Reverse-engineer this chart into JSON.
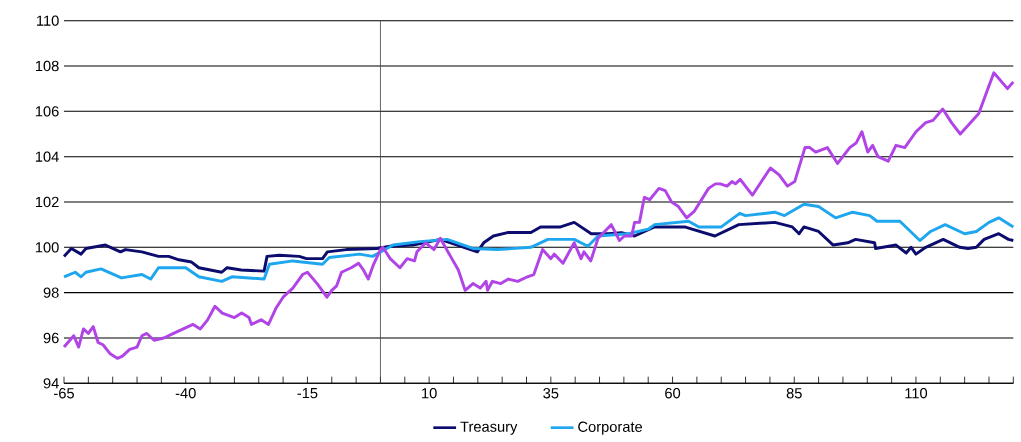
{
  "chart_data": {
    "type": "line",
    "xlim": [
      -65,
      130
    ],
    "ylim": [
      94,
      110
    ],
    "xticks": [
      -65,
      {
        "value": -60,
        "label": null
      },
      {
        "value": -55,
        "label": null
      },
      {
        "value": -50,
        "label": null
      },
      {
        "value": -45,
        "label": null
      },
      -40,
      {
        "value": -35,
        "label": null
      },
      {
        "value": -30,
        "label": null
      },
      {
        "value": -25,
        "label": null
      },
      {
        "value": -20,
        "label": null
      },
      -15,
      {
        "value": -10,
        "label": null
      },
      {
        "value": -5,
        "label": null
      },
      {
        "value": 0,
        "label": null
      },
      {
        "value": 5,
        "label": null
      },
      10,
      {
        "value": 15,
        "label": null
      },
      {
        "value": 20,
        "label": null
      },
      {
        "value": 25,
        "label": null
      },
      {
        "value": 30,
        "label": null
      },
      35,
      {
        "value": 40,
        "label": null
      },
      {
        "value": 45,
        "label": null
      },
      {
        "value": 50,
        "label": null
      },
      {
        "value": 55,
        "label": null
      },
      60,
      {
        "value": 65,
        "label": null
      },
      {
        "value": 70,
        "label": null
      },
      {
        "value": 75,
        "label": null
      },
      {
        "value": 80,
        "label": null
      },
      85,
      {
        "value": 90,
        "label": null
      },
      {
        "value": 95,
        "label": null
      },
      {
        "value": 100,
        "label": null
      },
      {
        "value": 105,
        "label": null
      },
      110,
      {
        "value": 115,
        "label": null
      },
      {
        "value": 120,
        "label": null
      },
      {
        "value": 125,
        "label": null
      },
      {
        "value": 130,
        "label": null
      }
    ],
    "yticks": [
      94,
      96,
      98,
      100,
      102,
      104,
      106,
      108,
      110
    ],
    "grid": "y",
    "legend": "bottom",
    "marker": "none",
    "line_style": "solid",
    "ref_lines": [
      {
        "axis": "x",
        "value": 0,
        "color": "#404040"
      }
    ],
    "series": [
      {
        "name": "Treasury",
        "color": "#0c0c6e",
        "x": [
          -65,
          -63.5,
          -61.5,
          -60.5,
          -56.5,
          -53.4,
          -52.4,
          -49,
          -45.6,
          -43.5,
          -41.4,
          -38.8,
          -37.3,
          -32.6,
          -31.5,
          -28.6,
          -23.9,
          -23.3,
          -20.8,
          -16.7,
          -15.2,
          -11.9,
          -10.9,
          -7,
          -0.7,
          2,
          6.7,
          12.3,
          16.4,
          19.9,
          21.2,
          23.2,
          26.1,
          30.9,
          32.9,
          37,
          39.8,
          43.3,
          46.8,
          49.5,
          52.2,
          56.3,
          62.5,
          64,
          68.7,
          73.6,
          81,
          84.6,
          86,
          87,
          90,
          93,
          96,
          97.6,
          101.5,
          101.7,
          105.9,
          108,
          109,
          110,
          112,
          115.6,
          119,
          120.7,
          122.4,
          124,
          127,
          129,
          130
        ],
        "values": [
          99.6,
          99.95,
          99.7,
          99.95,
          100.1,
          99.8,
          99.9,
          99.8,
          99.6,
          99.6,
          99.45,
          99.35,
          99.1,
          98.9,
          99.1,
          99,
          98.95,
          99.6,
          99.65,
          99.6,
          99.5,
          99.5,
          99.8,
          99.9,
          99.95,
          100.05,
          100.1,
          100.35,
          100.05,
          99.8,
          100.2,
          100.5,
          100.65,
          100.65,
          100.9,
          100.9,
          101.1,
          100.6,
          100.6,
          100.65,
          100.5,
          100.9,
          100.9,
          100.8,
          100.5,
          101,
          101.1,
          100.9,
          100.6,
          100.9,
          100.7,
          100.1,
          100.2,
          100.35,
          100.2,
          99.95,
          100.1,
          99.75,
          100,
          99.7,
          100,
          100.35,
          100,
          99.95,
          100,
          100.35,
          100.6,
          100.35,
          100.3
        ]
      },
      {
        "name": "Corporate",
        "color": "#1ea6ee",
        "x": [
          -65,
          -62.7,
          -61.5,
          -60.5,
          -57.4,
          -53.2,
          -49,
          -47.2,
          -45.6,
          -40,
          -37.3,
          -32.6,
          -30.5,
          -23.9,
          -22.8,
          -18,
          -11.9,
          -10.5,
          -4.3,
          -1.6,
          2.6,
          8.1,
          13.7,
          19,
          24,
          30.9,
          34.4,
          39.8,
          42.6,
          44.7,
          50.9,
          55,
          56.3,
          63.3,
          65.4,
          70,
          73.8,
          75,
          81,
          83,
          87,
          90,
          93.5,
          97,
          100.5,
          102,
          106.7,
          110.8,
          113,
          116,
          120,
          122.4,
          125,
          127,
          130
        ],
        "values": [
          98.7,
          98.9,
          98.7,
          98.9,
          99.05,
          98.65,
          98.8,
          98.6,
          99.1,
          99.1,
          98.7,
          98.5,
          98.7,
          98.6,
          99.25,
          99.4,
          99.25,
          99.55,
          99.7,
          99.6,
          100.1,
          100.25,
          100.35,
          99.95,
          99.9,
          100,
          100.35,
          100.35,
          100.05,
          100.5,
          100.6,
          100.8,
          101,
          101.15,
          100.9,
          100.9,
          101.5,
          101.4,
          101.55,
          101.4,
          101.9,
          101.8,
          101.3,
          101.55,
          101.4,
          101.15,
          101.15,
          100.3,
          100.7,
          101,
          100.6,
          100.7,
          101.1,
          101.3,
          100.9
        ]
      },
      {
        "color": "#b044e6",
        "x": [
          -65,
          -63,
          -62,
          -61,
          -60,
          -59,
          -58,
          -57,
          -55.5,
          -54,
          -53,
          -51.5,
          -50,
          -49,
          -48,
          -46.5,
          -44.5,
          -42.5,
          -40.5,
          -38.5,
          -37,
          -35.5,
          -34,
          -32.5,
          -30,
          -28.5,
          -27,
          -26.5,
          -24.5,
          -23,
          -21.5,
          -20,
          -18,
          -17,
          -16,
          -15,
          -13,
          -12,
          -11,
          -10,
          -9,
          -8,
          -6,
          -4.5,
          -3.5,
          -2.5,
          -1.5,
          0,
          0.5,
          2,
          4,
          5.5,
          7,
          7.5,
          9.3,
          11,
          12.3,
          14.4,
          16,
          17.4,
          19,
          20.5,
          21.7,
          22,
          23,
          24.7,
          26.3,
          28.2,
          30.2,
          31.5,
          33.3,
          35,
          35.7,
          37.5,
          39.8,
          41.2,
          41.8,
          43.2,
          44.7,
          47.4,
          49.1,
          50.1,
          51.6,
          52.2,
          53.2,
          54.2,
          55.3,
          57.2,
          58.5,
          59.8,
          61.2,
          62.9,
          64.5,
          67.4,
          68.8,
          69.8,
          71.2,
          72.2,
          72.9,
          73.9,
          76.4,
          80.1,
          81.9,
          83.6,
          85.1,
          87.2,
          88.2,
          89.4,
          91.8,
          93.9,
          96.4,
          97.7,
          98.9,
          100.1,
          101.1,
          102.2,
          104.3,
          105.9,
          107.7,
          110,
          112,
          113.5,
          115.5,
          117.3,
          119.1,
          121.2,
          122.9,
          124.6,
          126,
          128.8,
          130
        ],
        "values": [
          95.6,
          96.1,
          95.6,
          96.4,
          96.2,
          96.5,
          95.8,
          95.7,
          95.3,
          95.1,
          95.2,
          95.5,
          95.6,
          96.1,
          96.2,
          95.9,
          96,
          96.2,
          96.4,
          96.6,
          96.4,
          96.8,
          97.4,
          97.1,
          96.9,
          97.1,
          96.9,
          96.6,
          96.8,
          96.6,
          97.3,
          97.8,
          98.2,
          98.5,
          98.8,
          98.9,
          98.4,
          98.1,
          97.8,
          98.1,
          98.3,
          98.9,
          99.1,
          99.3,
          99,
          98.6,
          99.2,
          99.9,
          100,
          99.5,
          99.1,
          99.5,
          99.4,
          99.8,
          100.2,
          99.9,
          100.4,
          99.6,
          99,
          98.1,
          98.4,
          98.2,
          98.5,
          98.1,
          98.5,
          98.4,
          98.6,
          98.5,
          98.7,
          98.8,
          99.9,
          99.5,
          99.7,
          99.3,
          100.2,
          99.5,
          99.8,
          99.4,
          100.4,
          101,
          100.3,
          100.5,
          100.5,
          101.1,
          101.1,
          102.2,
          102.1,
          102.6,
          102.5,
          102,
          101.8,
          101.3,
          101.6,
          102.6,
          102.8,
          102.8,
          102.7,
          102.9,
          102.8,
          103,
          102.3,
          103.5,
          103.2,
          102.7,
          102.9,
          104.4,
          104.4,
          104.2,
          104.4,
          103.7,
          104.4,
          104.6,
          105.1,
          104.2,
          104.5,
          104,
          103.8,
          104.5,
          104.4,
          105.1,
          105.5,
          105.6,
          106.1,
          105.5,
          105,
          105.5,
          105.9,
          106.9,
          107.7,
          107,
          107.3
        ]
      }
    ]
  }
}
